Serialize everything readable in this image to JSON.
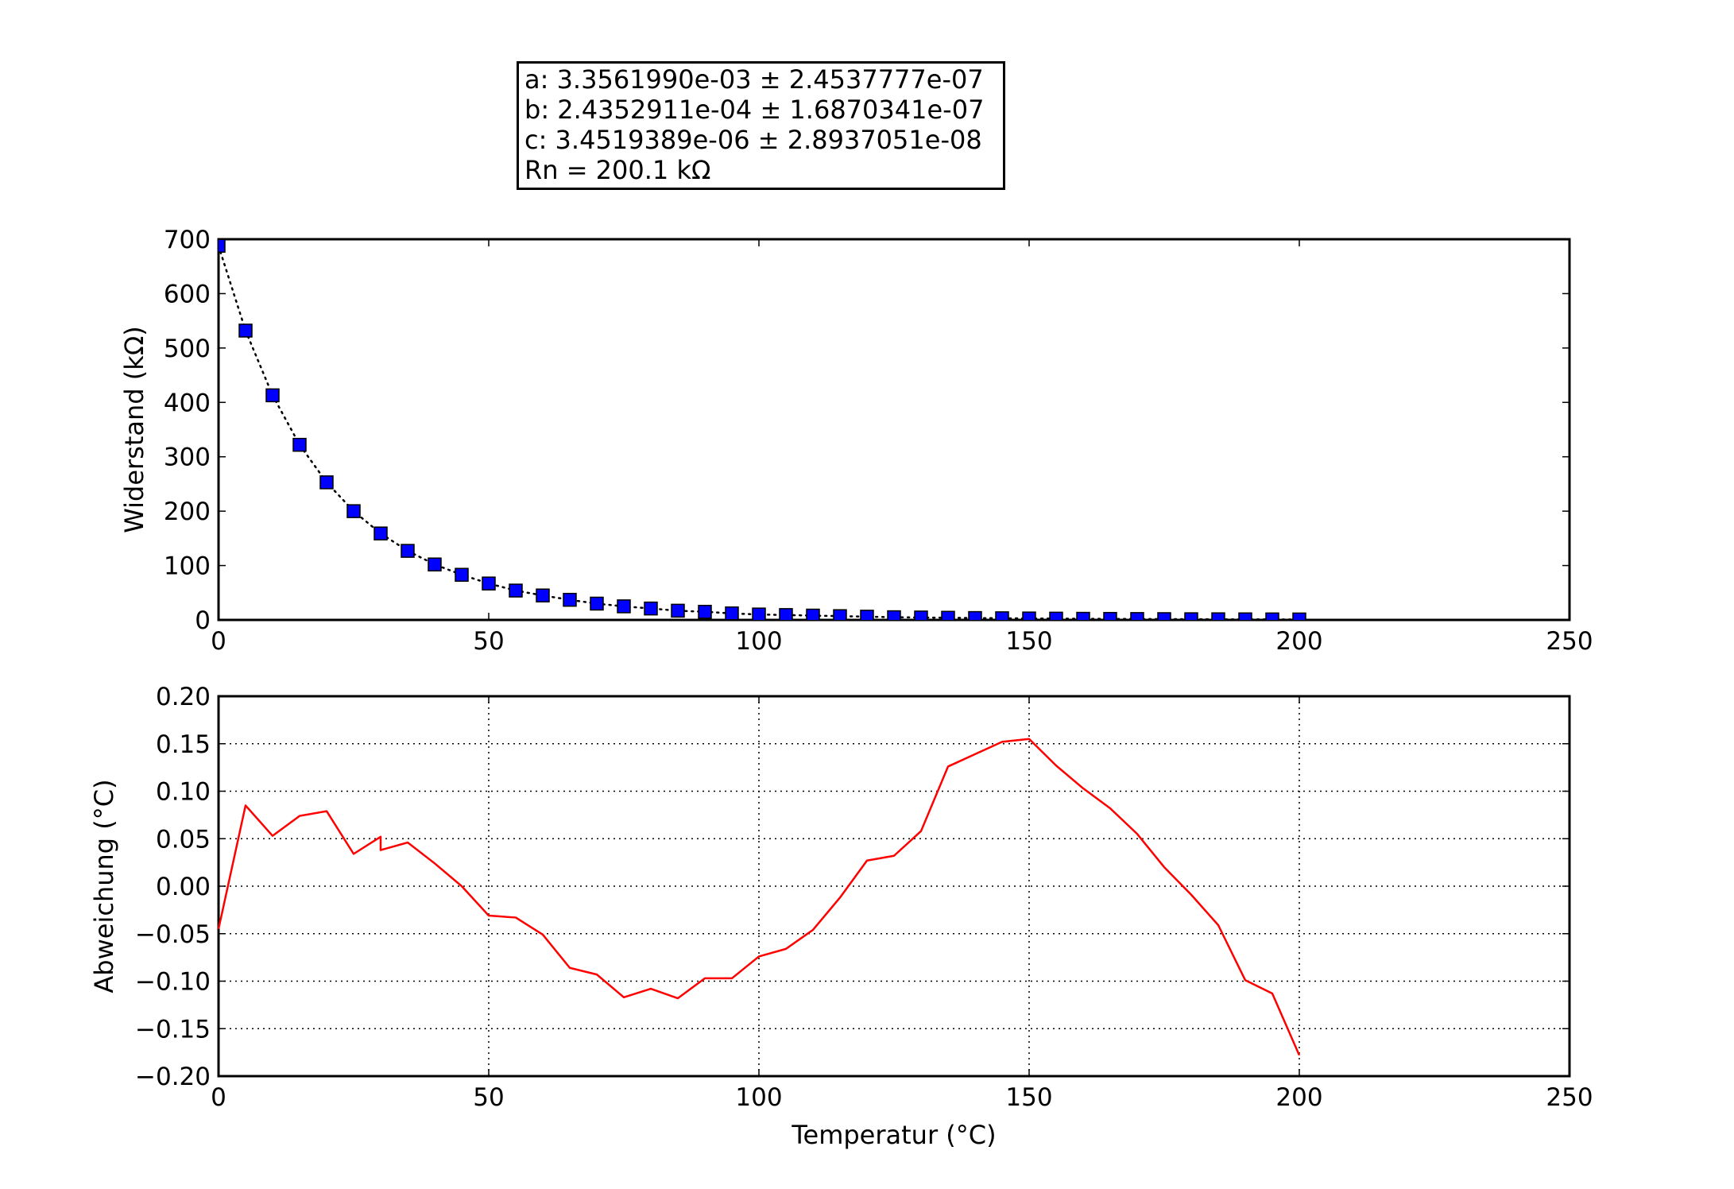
{
  "info_box": {
    "line_a": "a: 3.3561990e-03 ± 2.4537777e-07",
    "line_b": "b: 2.4352911e-04 ± 1.6870341e-07",
    "line_c": "c: 3.4519389e-06 ± 2.8937051e-08",
    "line_rn": "Rn = 200.1 kΩ"
  },
  "chart_data": [
    {
      "type": "scatter",
      "xlabel": "",
      "ylabel": "Widerstand (kΩ)",
      "xlim": [
        0,
        250
      ],
      "ylim": [
        0,
        700
      ],
      "xticks": [
        "0",
        "50",
        "100",
        "150",
        "200",
        "250"
      ],
      "yticks": [
        "0",
        "100",
        "200",
        "300",
        "400",
        "500",
        "600",
        "700"
      ],
      "grid": false,
      "marker_color": "#0000ff",
      "fit_line_style": "dotted black",
      "series": [
        {
          "x": [
            0,
            5,
            10,
            15,
            20,
            25,
            30,
            35,
            40,
            45,
            50,
            55,
            60,
            65,
            70,
            75,
            80,
            85,
            90,
            95,
            100,
            105,
            110,
            115,
            120,
            125,
            130,
            135,
            140,
            145,
            150,
            155,
            160,
            165,
            170,
            175,
            180,
            185,
            190,
            195,
            200
          ],
          "values": [
            688,
            532,
            413,
            322,
            253,
            200,
            159,
            127,
            102,
            83,
            67,
            54,
            45,
            37,
            30,
            25,
            21,
            17,
            15,
            12,
            10,
            9,
            8,
            7,
            6,
            5,
            4.5,
            4,
            3.5,
            3.1,
            2.7,
            2.4,
            2.1,
            1.9,
            1.7,
            1.5,
            1.3,
            1.2,
            1.1,
            1.0,
            0.9
          ]
        }
      ]
    },
    {
      "type": "line",
      "xlabel": "Temperatur (°C)",
      "ylabel": "Abweichung (°C)",
      "xlim": [
        0,
        250
      ],
      "ylim": [
        -0.2,
        0.2
      ],
      "xticks": [
        "0",
        "50",
        "100",
        "150",
        "200",
        "250"
      ],
      "yticks": [
        "−0.20",
        "−0.15",
        "−0.10",
        "−0.05",
        "0.00",
        "0.05",
        "0.10",
        "0.15",
        "0.20"
      ],
      "grid": true,
      "line_color": "#ff0000",
      "series": [
        {
          "x": [
            0,
            5,
            10,
            15,
            20,
            25,
            30,
            30,
            35,
            40,
            45,
            50,
            55,
            60,
            65,
            70,
            75,
            80,
            85,
            90,
            95,
            100,
            105,
            110,
            115,
            120,
            125,
            130,
            135,
            140,
            145,
            150,
            155,
            160,
            165,
            170,
            175,
            180,
            185,
            190,
            195,
            200
          ],
          "values": [
            -0.045,
            0.085,
            0.053,
            0.074,
            0.079,
            0.034,
            0.052,
            0.038,
            0.046,
            0.024,
            0.0,
            -0.031,
            -0.033,
            -0.051,
            -0.086,
            -0.093,
            -0.117,
            -0.108,
            -0.118,
            -0.097,
            -0.097,
            -0.074,
            -0.066,
            -0.046,
            -0.012,
            0.027,
            0.032,
            0.058,
            0.126,
            0.139,
            0.152,
            0.155,
            0.127,
            0.103,
            0.082,
            0.055,
            0.02,
            -0.009,
            -0.041,
            -0.099,
            -0.113,
            -0.178
          ]
        }
      ]
    }
  ]
}
